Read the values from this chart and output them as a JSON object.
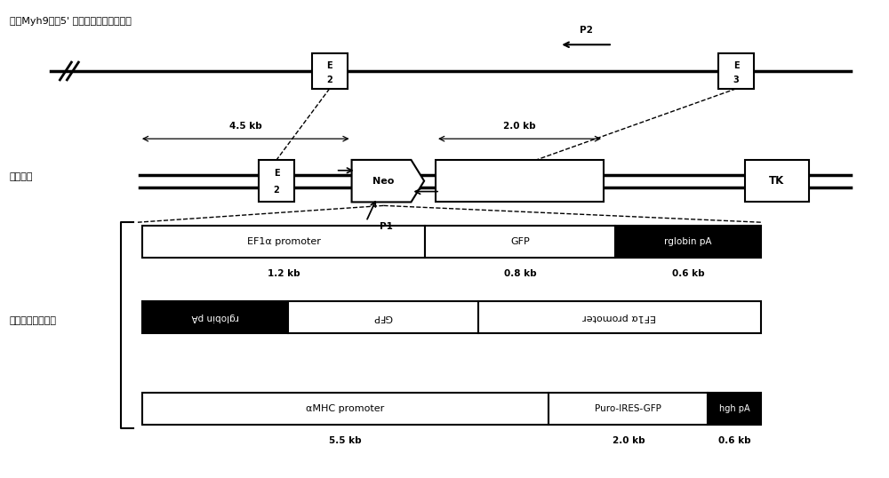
{
  "title_top": "小鼠Myh9基因5' 端部分外显子和内含子",
  "label_targeting": "打靶载体",
  "label_inserts": "拟插入基因表达盒",
  "bg_color": "#ffffff"
}
